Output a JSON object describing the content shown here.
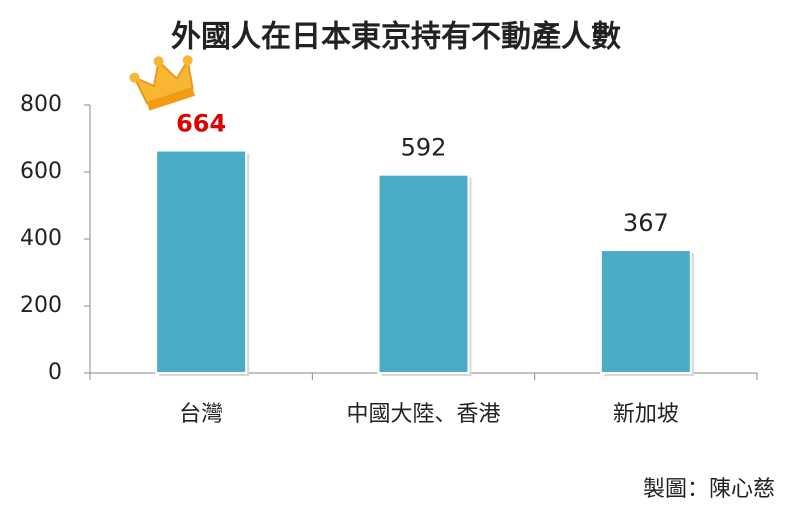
{
  "chart_data": {
    "type": "bar",
    "title": "外國人在日本東京持有不動產人數",
    "categories": [
      "台灣",
      "中國大陸、香港",
      "新加坡"
    ],
    "values": [
      664,
      592,
      367
    ],
    "color": "#4bacc6",
    "label_colors": [
      "#e00000",
      "#222222",
      "#222222"
    ],
    "ylim": [
      0,
      800
    ],
    "yticks": [
      0,
      200,
      400,
      600,
      800
    ],
    "grid": false,
    "credit": "製圖：陳心慈"
  }
}
